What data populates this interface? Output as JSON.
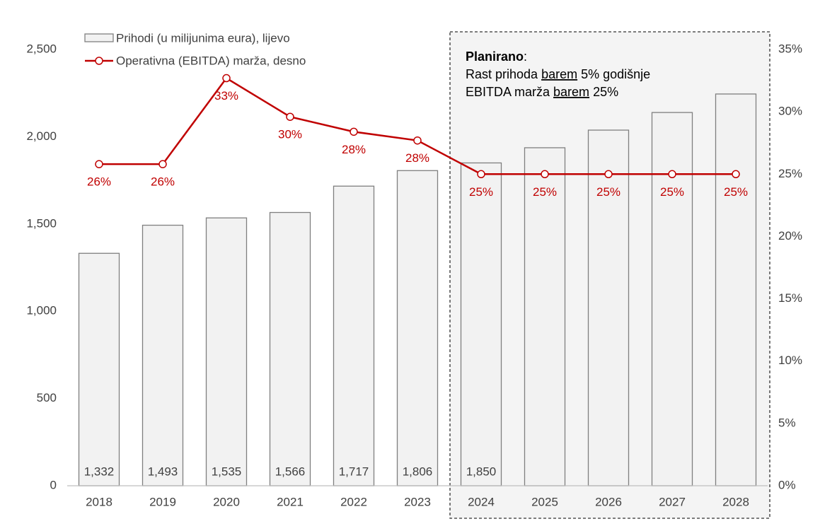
{
  "chart_data": {
    "type": "bar_line",
    "categories": [
      "2018",
      "2019",
      "2020",
      "2021",
      "2022",
      "2023",
      "2024",
      "2025",
      "2026",
      "2027",
      "2028"
    ],
    "series": [
      {
        "name": "Prihodi (u milijunima eura), lijevo",
        "type": "bar",
        "color": "#f2f2f2",
        "values": [
          1332,
          1493,
          1535,
          1566,
          1717,
          1806,
          1850,
          1937,
          2038,
          2139,
          2245
        ],
        "value_labels": [
          "1,332",
          "1,493",
          "1,535",
          "1,566",
          "1,717",
          "1,806",
          "1,850",
          null,
          null,
          null,
          null
        ]
      },
      {
        "name": "Operativna (EBITDA) marža, desno",
        "type": "line",
        "axis": "y2",
        "color": "#c00000",
        "values": [
          25.8,
          25.8,
          32.7,
          29.6,
          28.4,
          27.7,
          25,
          25,
          25,
          25,
          25
        ],
        "value_labels": [
          "26%",
          "26%",
          "33%",
          "30%",
          "28%",
          "28%",
          "25%",
          "25%",
          "25%",
          "25%",
          "25%"
        ]
      }
    ],
    "ylim": [
      0,
      2500
    ],
    "yticks": [
      0,
      500,
      {
        "value": 1000,
        "label": "1,000"
      },
      {
        "value": 1500,
        "label": "1,500"
      },
      {
        "value": 2000,
        "label": "2,000"
      },
      {
        "value": 2500,
        "label": "2,500"
      }
    ],
    "y2lim": [
      0,
      35
    ],
    "y2ticks": [
      {
        "value": 0,
        "label": "0%"
      },
      {
        "value": 5,
        "label": "5%"
      },
      {
        "value": 10,
        "label": "10%"
      },
      {
        "value": 15,
        "label": "15%"
      },
      {
        "value": 20,
        "label": "20%"
      },
      {
        "value": 25,
        "label": "25%"
      },
      {
        "value": 30,
        "label": "30%"
      },
      {
        "value": 35,
        "label": "35%"
      }
    ],
    "annotation": {
      "heading": "Planirano",
      "heading_suffix": ":",
      "lines": [
        [
          "Rast prihoda ",
          "barem",
          " 5% godišnje"
        ],
        [
          "EBITDA marža ",
          "barem",
          " 25%"
        ]
      ]
    }
  }
}
